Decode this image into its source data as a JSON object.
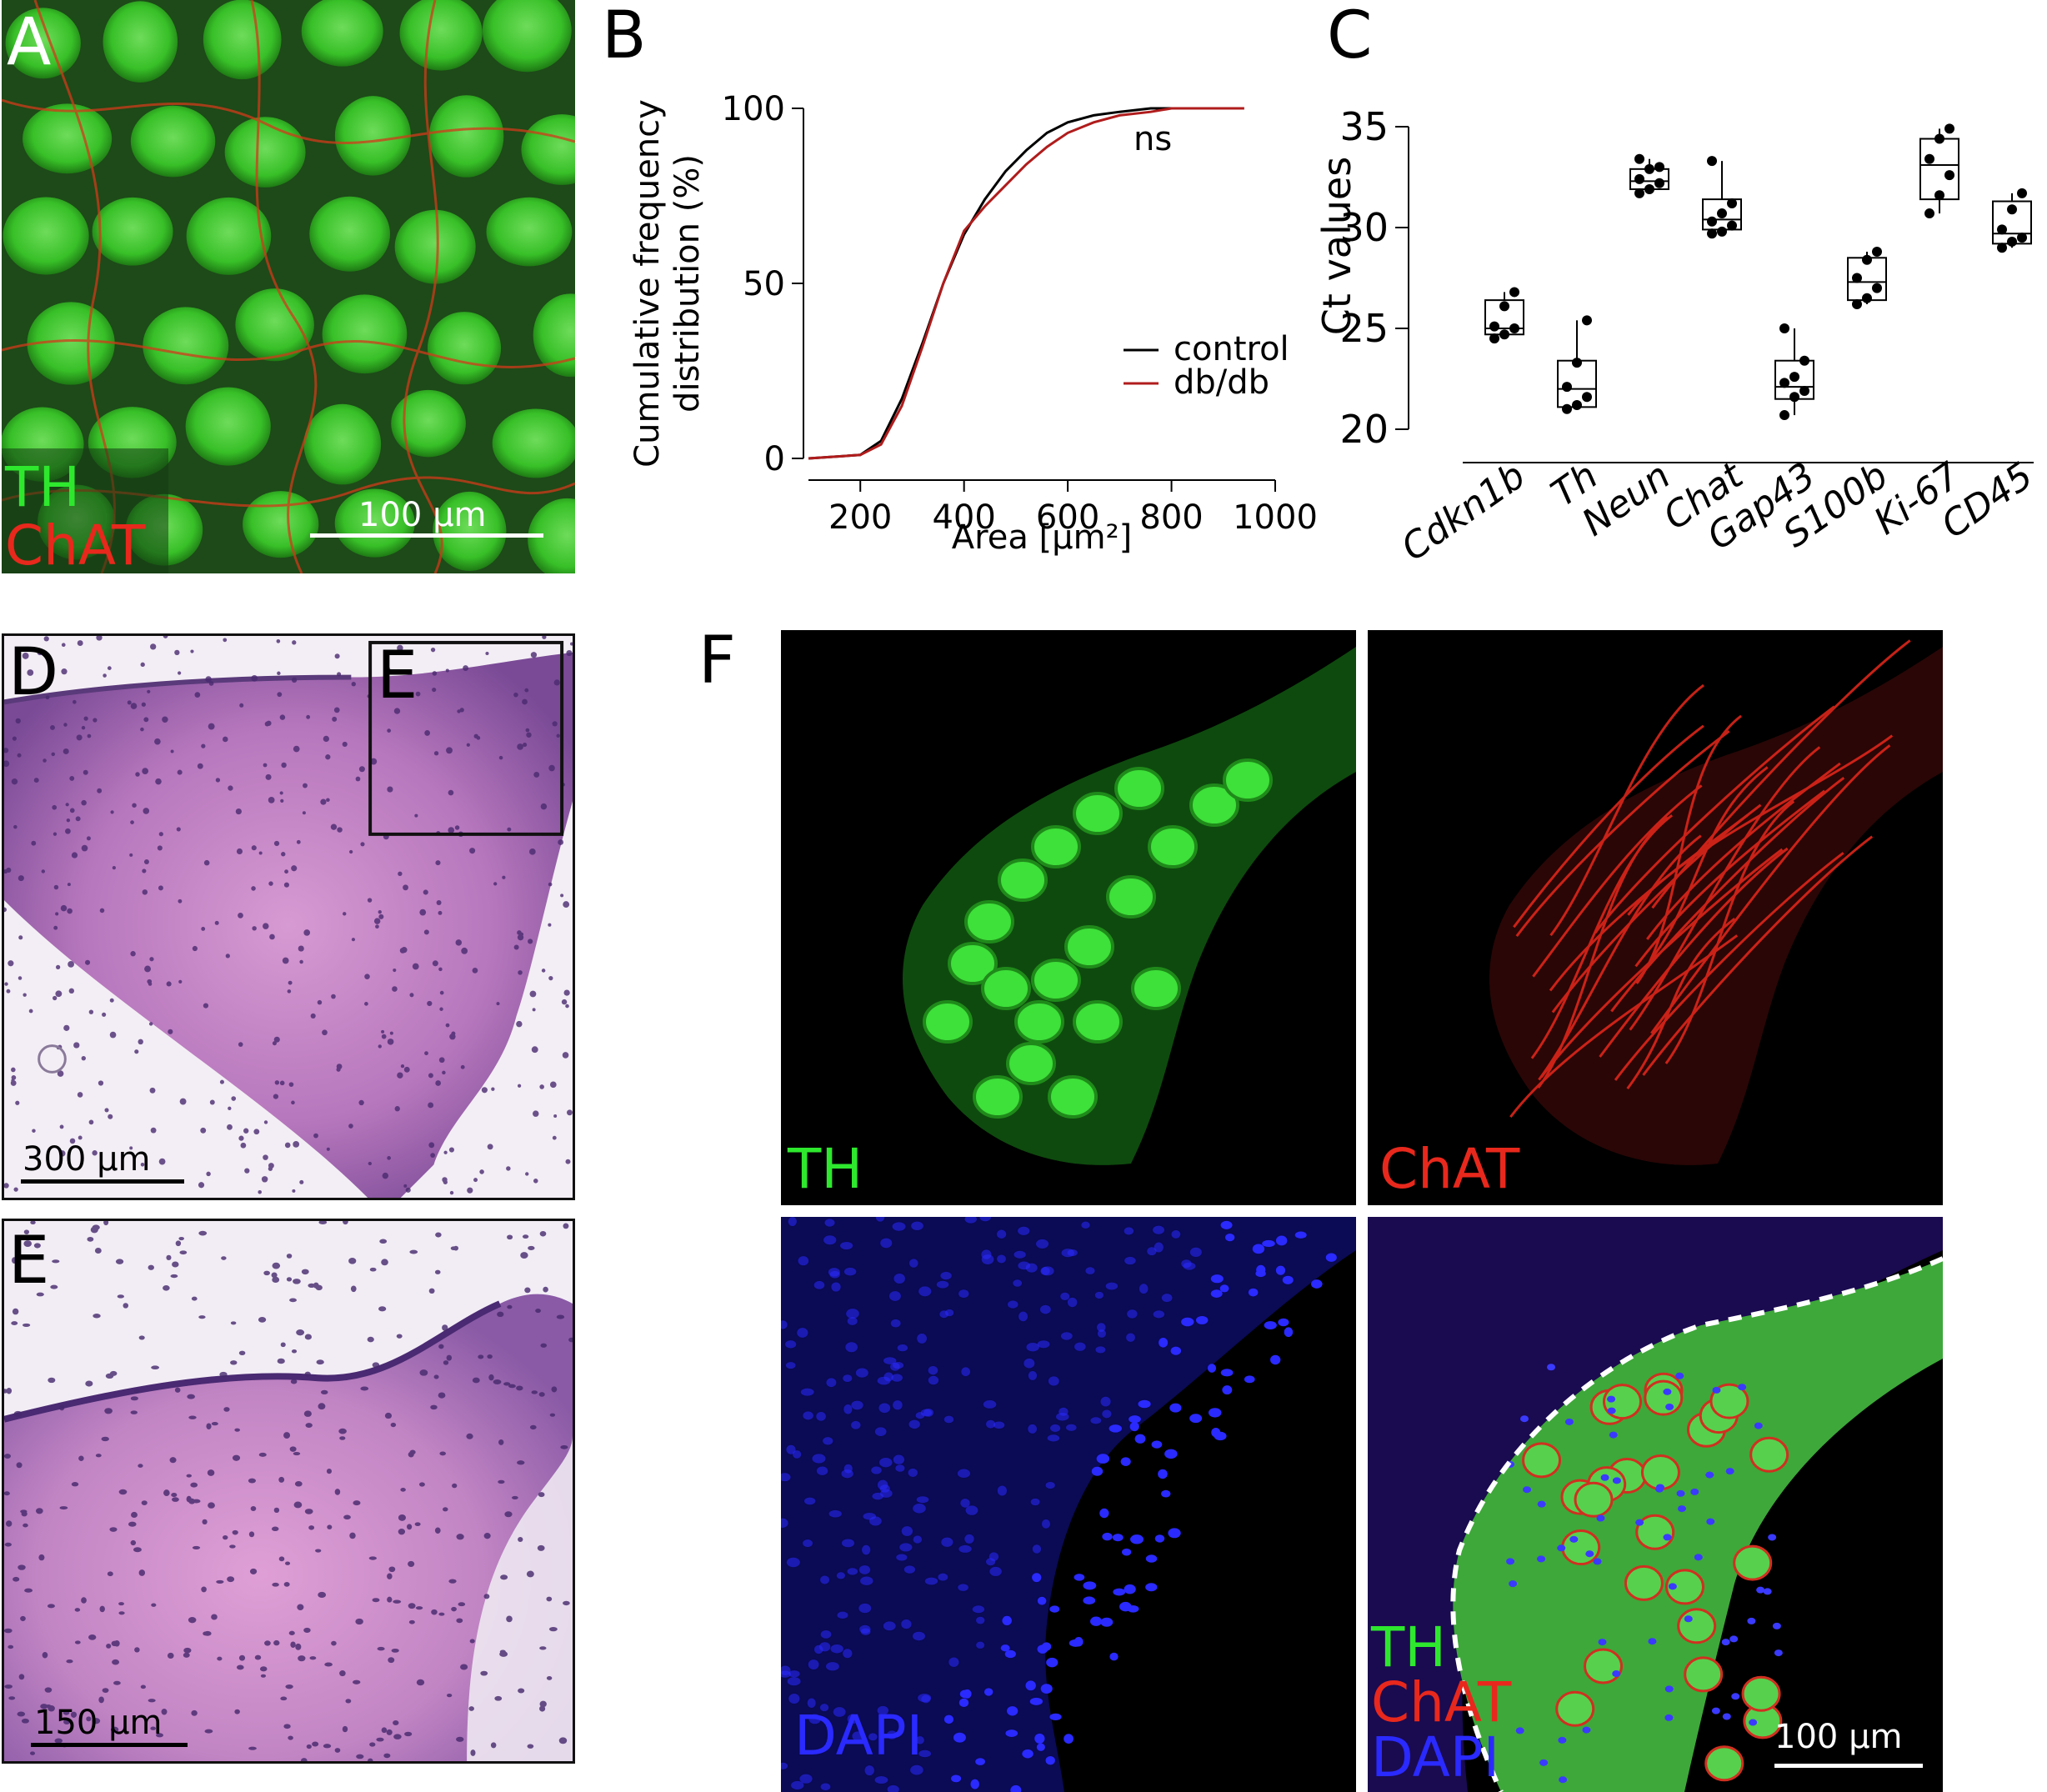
{
  "panel_letters": {
    "a": "A",
    "b": "B",
    "c": "C",
    "d": "D",
    "e": "E",
    "f": "F",
    "e_inset": "E"
  },
  "panel_a": {
    "label_th": "TH",
    "label_chat": "ChAT",
    "scale": "100 µm"
  },
  "panel_d": {
    "scale": "300 µm"
  },
  "panel_e": {
    "scale": "150 µm"
  },
  "panel_f": {
    "label_th": "TH",
    "label_chat": "ChAT",
    "label_dapi": "DAPI",
    "merge_th": "TH",
    "merge_chat": "ChAT",
    "merge_dapi": "DAPI",
    "scale": "100 µm"
  },
  "colors": {
    "green": "#2ee82e",
    "red": "#e8281c",
    "blue": "#2a2aff",
    "control_line": "#000000",
    "dbdb_line": "#b01c1c"
  },
  "chart_data": [
    {
      "type": "line",
      "ylabel_line1": "Cumulative frequency",
      "ylabel_line2": "distribution (%)",
      "xlabel": "Area [µm²]",
      "xlim": [
        100,
        1000
      ],
      "ylim": [
        0,
        100
      ],
      "xticks": [
        200,
        400,
        600,
        800,
        1000
      ],
      "yticks": [
        0,
        50,
        100
      ],
      "annotation": "ns",
      "legend": "center-right",
      "series": [
        {
          "name": "control",
          "x": [
            100,
            200,
            240,
            280,
            320,
            360,
            400,
            440,
            480,
            520,
            560,
            600,
            650,
            700,
            760,
            800,
            900,
            940
          ],
          "y": [
            0,
            1,
            5,
            17,
            33,
            50,
            64,
            74,
            82,
            88,
            93,
            96,
            98,
            99,
            100,
            100,
            100,
            100
          ]
        },
        {
          "name": "db/db",
          "x": [
            100,
            200,
            240,
            280,
            320,
            360,
            400,
            440,
            480,
            520,
            560,
            600,
            650,
            700,
            760,
            800,
            900,
            940
          ],
          "y": [
            0,
            1,
            4,
            15,
            32,
            50,
            65,
            72,
            78,
            84,
            89,
            93,
            96,
            98,
            99,
            100,
            100,
            100
          ]
        }
      ]
    },
    {
      "type": "box",
      "ylabel": "Ct values",
      "ylim": [
        20,
        35
      ],
      "yticks": [
        20,
        25,
        30,
        35
      ],
      "categories": [
        "Cdkn1b",
        "Th",
        "Neun",
        "Chat",
        "Gap43",
        "S100b",
        "Ki-67",
        "CD45"
      ],
      "boxes": [
        {
          "min": 24.5,
          "q1": 24.7,
          "median": 25.0,
          "q3": 26.4,
          "max": 26.8,
          "points": [
            24.5,
            24.7,
            25.0,
            25.1,
            26.1,
            26.8
          ]
        },
        {
          "min": 21.0,
          "q1": 21.1,
          "median": 22.0,
          "q3": 23.4,
          "max": 25.4,
          "points": [
            21.0,
            21.2,
            21.6,
            22.1,
            23.3,
            25.4
          ]
        },
        {
          "min": 31.7,
          "q1": 31.9,
          "median": 32.3,
          "q3": 32.9,
          "max": 33.4,
          "points": [
            31.7,
            31.9,
            32.2,
            32.4,
            32.9,
            33.0,
            33.4
          ]
        },
        {
          "min": 29.7,
          "q1": 29.9,
          "median": 30.4,
          "q3": 31.4,
          "max": 33.3,
          "points": [
            29.7,
            29.8,
            30.1,
            30.3,
            30.7,
            31.2,
            33.3
          ]
        },
        {
          "min": 20.7,
          "q1": 21.5,
          "median": 22.1,
          "q3": 23.4,
          "max": 25.0,
          "points": [
            20.7,
            21.6,
            21.9,
            22.3,
            22.6,
            23.4,
            25.0
          ]
        },
        {
          "min": 26.2,
          "q1": 26.4,
          "median": 27.3,
          "q3": 28.5,
          "max": 28.8,
          "points": [
            26.2,
            26.5,
            27.0,
            27.5,
            28.4,
            28.8
          ]
        },
        {
          "min": 30.7,
          "q1": 31.4,
          "median": 33.1,
          "q3": 34.4,
          "max": 34.9,
          "points": [
            30.7,
            31.6,
            32.6,
            33.4,
            34.4,
            34.9
          ]
        },
        {
          "min": 29.0,
          "q1": 29.2,
          "median": 29.7,
          "q3": 31.3,
          "max": 31.7,
          "points": [
            29.0,
            29.3,
            29.5,
            29.9,
            30.9,
            31.7
          ]
        }
      ]
    }
  ]
}
